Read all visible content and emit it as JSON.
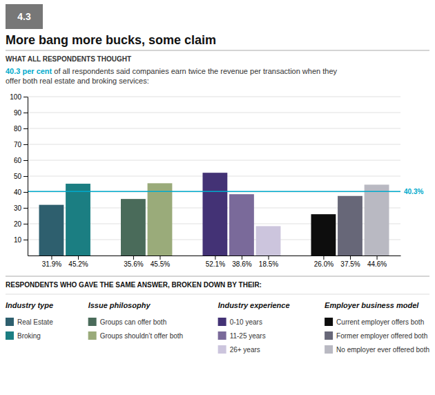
{
  "chart_data": {
    "type": "bar",
    "tab_label": "4.3",
    "tab_color": "#777777",
    "tab_text_color": "#ffffff",
    "title": "More bang more bucks, some claim",
    "subtitle": "WHAT ALL RESPONDENTS THOUGHT",
    "body_highlight": "40.3 per cent",
    "body_text": " of all respondents said companies earn twice the revenue per transaction when they",
    "body_text_line2": "offer both real estate and broking services:",
    "highlight_color": "#00aacc",
    "categories": [
      "31.9%",
      "45.2%",
      "35.6%",
      "45.5%",
      "52.1%",
      "38.6%",
      "18.5%",
      "26.0%",
      "37.5%",
      "44.6%"
    ],
    "values": [
      31.9,
      45.2,
      35.6,
      45.5,
      52.1,
      38.6,
      18.5,
      26.0,
      37.5,
      44.6
    ],
    "colors": [
      "#2e5f6e",
      "#1b7e82",
      "#4a6b5a",
      "#9aab7a",
      "#433275",
      "#7a6a9a",
      "#ccc5dd",
      "#0d0d0d",
      "#676778",
      "#b9b9c2"
    ],
    "reference_line": {
      "value": 40.3,
      "label": "40.3%",
      "color": "#00aacc"
    },
    "ylim": [
      0,
      100
    ],
    "yticks": [
      10,
      20,
      30,
      40,
      50,
      60,
      70,
      80,
      90,
      100
    ],
    "grid": true,
    "legend_header": "RESPONDENTS WHO GAVE THE SAME ANSWER, BROKEN DOWN BY THEIR:",
    "legend_sections": [
      {
        "title": "Industry type",
        "items": [
          {
            "name": "Real Estate",
            "color": "#2e5f6e"
          },
          {
            "name": "Broking",
            "color": "#1b7e82"
          }
        ]
      },
      {
        "title": "Issue philosophy",
        "items": [
          {
            "name": "Groups can offer both",
            "color": "#4a6b5a"
          },
          {
            "name": "Groups shouldn’t offer both",
            "color": "#9aab7a"
          }
        ]
      },
      {
        "title": "Industry experience",
        "items": [
          {
            "name": "0-10 years",
            "color": "#433275"
          },
          {
            "name": "11-25 years",
            "color": "#7a6a9a"
          },
          {
            "name": "26+ years",
            "color": "#ccc5dd"
          }
        ]
      },
      {
        "title": "Employer business model",
        "items": [
          {
            "name": "Current employer offers both",
            "color": "#0d0d0d"
          },
          {
            "name": "Former employer offered both",
            "color": "#676778"
          },
          {
            "name": "No employer ever offered both",
            "color": "#b9b9c2"
          }
        ]
      }
    ]
  }
}
